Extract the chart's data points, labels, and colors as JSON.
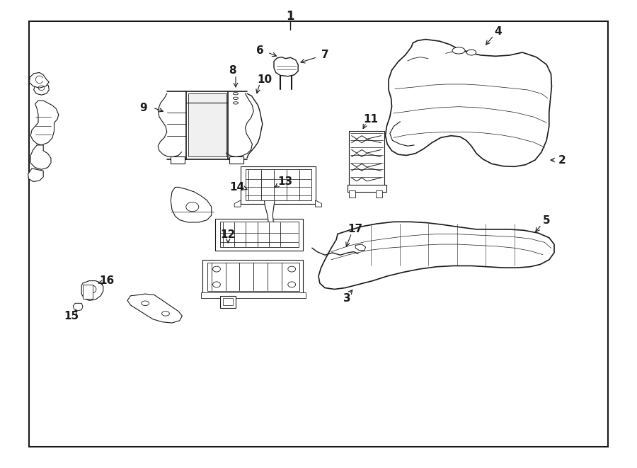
{
  "bg_color": "#ffffff",
  "line_color": "#1a1a1a",
  "fig_width": 9.0,
  "fig_height": 6.61,
  "dpi": 100,
  "border": [
    0.045,
    0.045,
    0.955,
    0.955
  ]
}
